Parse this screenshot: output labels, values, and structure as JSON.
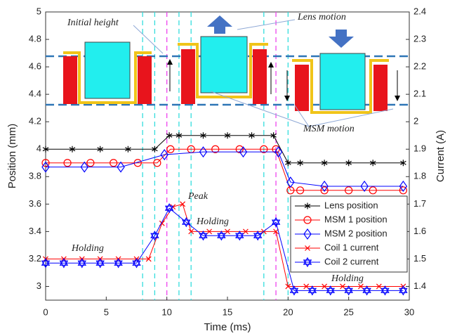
{
  "chart_data": {
    "type": "line",
    "xlabel": "Time (ms)",
    "ylabel": "Position (mm)",
    "y2label": "Current (A)",
    "xlim": [
      0,
      30
    ],
    "xticks": [
      0,
      5,
      10,
      15,
      20,
      25,
      30
    ],
    "ylim": [
      2.9,
      5
    ],
    "yticks": [
      3,
      3.2,
      3.4,
      3.6,
      3.8,
      4,
      4.2,
      4.4,
      4.6,
      4.8,
      5
    ],
    "y2lim": [
      1.35,
      2.4
    ],
    "y2ticks": [
      1.4,
      1.5,
      1.6,
      1.7,
      1.8,
      1.9,
      2,
      2.1,
      2.2,
      2.3,
      2.4
    ],
    "legend": "lower right",
    "series": [
      {
        "name": "Lens position",
        "color": "#000000",
        "marker": "star",
        "x": [
          0,
          2.2,
          4.5,
          6.8,
          9,
          10.2,
          11,
          13,
          15,
          17,
          18.8,
          20,
          21,
          23,
          25,
          27,
          29.5
        ],
        "values": [
          4.0,
          4.0,
          4.0,
          4.0,
          4.0,
          4.1,
          4.1,
          4.1,
          4.1,
          4.1,
          4.1,
          3.9,
          3.9,
          3.9,
          3.9,
          3.9,
          3.9
        ]
      },
      {
        "name": "MSM 1 position",
        "color": "#ff0000",
        "marker": "circle",
        "x": [
          0,
          1.8,
          3.7,
          5.6,
          7.6,
          9.2,
          10.3,
          12,
          14,
          16,
          18,
          19,
          20.2,
          21,
          23,
          25,
          27,
          29.5
        ],
        "values": [
          3.9,
          3.9,
          3.9,
          3.9,
          3.9,
          3.9,
          4.0,
          4.0,
          4.0,
          4.0,
          4.0,
          4.0,
          3.7,
          3.7,
          3.7,
          3.7,
          3.7,
          3.7
        ]
      },
      {
        "name": "MSM 2 position",
        "color": "#0000ff",
        "marker": "diamond",
        "x": [
          0,
          3.2,
          6.2,
          9.8,
          13,
          16.3,
          19.2,
          20.2,
          23,
          26.3,
          29.5
        ],
        "values": [
          3.87,
          3.87,
          3.87,
          3.96,
          3.98,
          3.98,
          3.98,
          3.76,
          3.73,
          3.73,
          3.73
        ]
      },
      {
        "name": "Coil 1 current",
        "color": "#ff0000",
        "marker": "x",
        "axis": "y2",
        "x": [
          0,
          1.5,
          3,
          4.5,
          6,
          7.5,
          8.5,
          9.6,
          10.5,
          11.3,
          12,
          13.5,
          15,
          16.5,
          18,
          19,
          20,
          21.5,
          23,
          24.5,
          26,
          27.5,
          29.5
        ],
        "values": [
          1.5,
          1.5,
          1.5,
          1.5,
          1.5,
          1.5,
          1.5,
          1.63,
          1.69,
          1.7,
          1.6,
          1.6,
          1.6,
          1.6,
          1.6,
          1.6,
          1.4,
          1.4,
          1.4,
          1.4,
          1.4,
          1.4,
          1.4
        ]
      },
      {
        "name": "Coil 2 current",
        "color": "#0000ff",
        "marker": "hexagram",
        "axis": "y2",
        "x": [
          0,
          1.5,
          3,
          4.5,
          6,
          7.5,
          9,
          10.2,
          11.6,
          13,
          14.5,
          16,
          17.5,
          19,
          20.5,
          22,
          23.5,
          25,
          26.5,
          28,
          29.5
        ],
        "values": [
          1.485,
          1.485,
          1.485,
          1.485,
          1.485,
          1.485,
          1.585,
          1.685,
          1.634,
          1.585,
          1.585,
          1.585,
          1.585,
          1.634,
          1.385,
          1.385,
          1.385,
          1.385,
          1.385,
          1.385,
          1.385
        ]
      }
    ],
    "reference_lines": [
      {
        "x": 8,
        "color": "#33dddd"
      },
      {
        "x": 9,
        "color": "#33dddd"
      },
      {
        "x": 10,
        "color": "#ee44ee"
      },
      {
        "x": 11,
        "color": "#33dddd"
      },
      {
        "x": 12,
        "color": "#33dddd"
      },
      {
        "x": 18,
        "color": "#33dddd"
      },
      {
        "x": 19,
        "color": "#ee44ee"
      },
      {
        "x": 20,
        "color": "#33dddd"
      }
    ],
    "annotations": [
      "Initial height",
      "Lens motion",
      "MSM motion",
      "Peak",
      "Holding",
      "Holding",
      "Holding"
    ]
  }
}
